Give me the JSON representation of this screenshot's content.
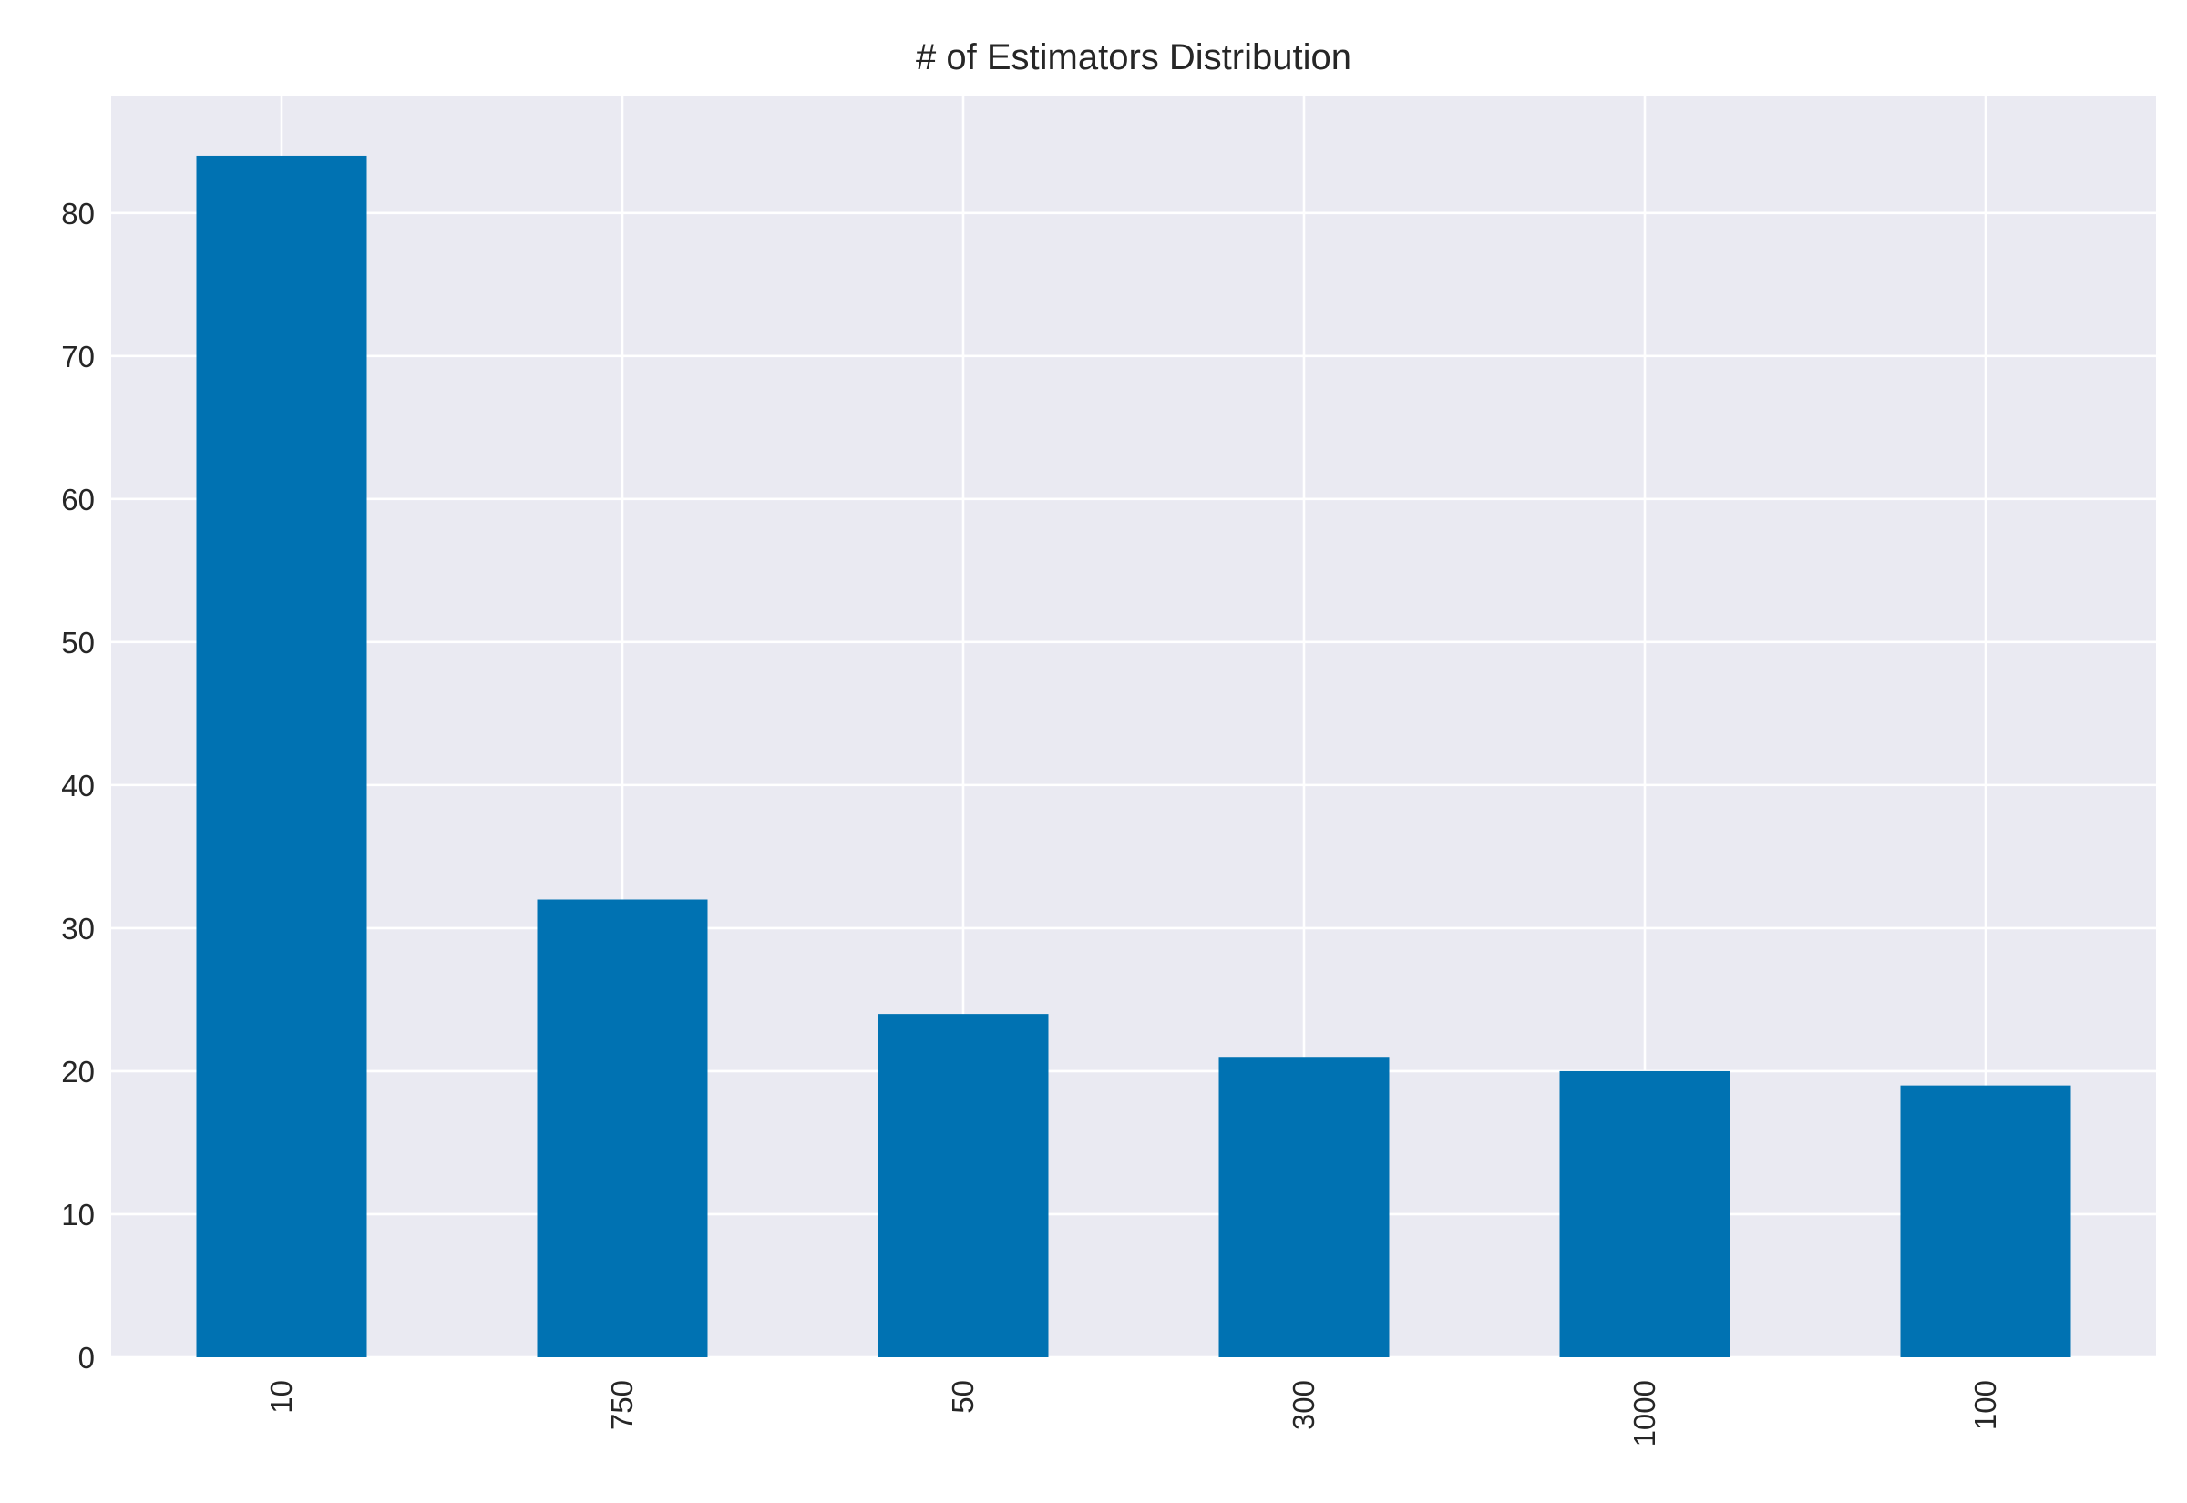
{
  "chart_data": {
    "type": "bar",
    "title": "# of Estimators Distribution",
    "xlabel": "",
    "ylabel": "",
    "categories": [
      "10",
      "750",
      "50",
      "300",
      "1000",
      "100"
    ],
    "values": [
      84,
      32,
      24,
      21,
      20,
      19
    ],
    "ylim": [
      0,
      88.2
    ],
    "yticks": [
      0,
      10,
      20,
      30,
      40,
      50,
      60,
      70,
      80
    ],
    "x_tick_rotation": "vertical",
    "grid": true,
    "legend": "none",
    "colors": {
      "bar": "#0072b2",
      "plot_background": "#eaeaf2",
      "grid": "#ffffff",
      "text": "#262626"
    }
  }
}
